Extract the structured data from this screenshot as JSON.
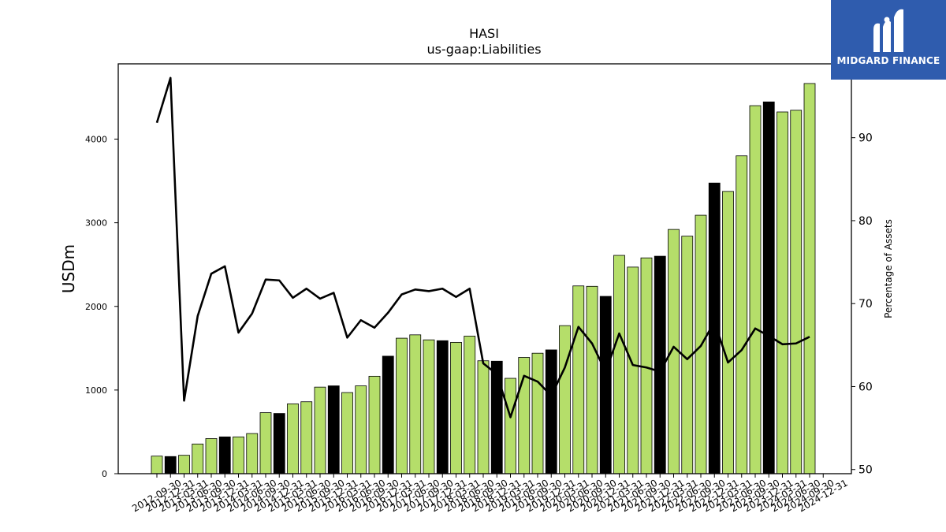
{
  "brand": {
    "name": "MIDGARD FINANCE",
    "bg_color": "#2f5cae"
  },
  "chart_data": {
    "type": "bar",
    "title": "HASI",
    "subtitle": "us-gaap:Liabilities",
    "ylabel": "USDm",
    "y2label": "Percentage of Assets",
    "ylim": [
      0,
      4900
    ],
    "y2lim": [
      49.5,
      98.9
    ],
    "yticks": [
      0,
      1000,
      2000,
      3000,
      4000
    ],
    "y2ticks": [
      50,
      60,
      70,
      80,
      90
    ],
    "colors": {
      "quarter_bar": "#b5de6a",
      "year_end_bar": "#000000",
      "line": "#000000"
    },
    "categories": [
      "2012-09-30",
      "2012-12-31",
      "2013-03-31",
      "2013-06-30",
      "2013-09-30",
      "2013-12-31",
      "2014-03-31",
      "2014-06-30",
      "2014-09-30",
      "2014-12-31",
      "2015-03-31",
      "2015-06-30",
      "2015-09-30",
      "2015-12-31",
      "2016-03-31",
      "2016-06-30",
      "2016-09-30",
      "2016-12-31",
      "2017-03-31",
      "2017-06-30",
      "2017-09-30",
      "2017-12-31",
      "2018-03-31",
      "2018-06-30",
      "2018-09-30",
      "2018-12-31",
      "2019-03-31",
      "2019-06-30",
      "2019-09-30",
      "2019-12-31",
      "2020-03-31",
      "2020-06-30",
      "2020-09-30",
      "2020-12-31",
      "2021-03-31",
      "2021-06-30",
      "2021-09-30",
      "2021-12-31",
      "2022-03-31",
      "2022-06-30",
      "2022-09-30",
      "2022-12-31",
      "2023-03-31",
      "2023-06-30",
      "2023-09-30",
      "2023-12-31",
      "2024-03-31",
      "2024-06-30",
      "2024-09-30",
      "2024-12-31"
    ],
    "year_end": [
      false,
      true,
      false,
      false,
      false,
      true,
      false,
      false,
      false,
      true,
      false,
      false,
      false,
      true,
      false,
      false,
      false,
      true,
      false,
      false,
      false,
      true,
      false,
      false,
      false,
      true,
      false,
      false,
      false,
      true,
      false,
      false,
      false,
      true,
      false,
      false,
      false,
      true,
      false,
      false,
      false,
      true,
      false,
      false,
      false,
      true,
      false,
      false,
      false,
      true
    ],
    "series": [
      {
        "kind": "bar",
        "values": [
          210,
          205,
          220,
          355,
          420,
          440,
          440,
          480,
          730,
          720,
          835,
          860,
          1035,
          1050,
          970,
          1050,
          1165,
          1405,
          1620,
          1660,
          1600,
          1590,
          1570,
          1645,
          1350,
          1345,
          1140,
          1390,
          1440,
          1480,
          1770,
          2245,
          2240,
          2120,
          2610,
          2470,
          2580,
          2600,
          2920,
          2840,
          3090,
          3475,
          3375,
          3800,
          4400,
          4445,
          4325,
          4345,
          4665,
          null
        ]
      },
      {
        "kind": "line",
        "values": [
          91.8,
          97.2,
          58.3,
          68.5,
          73.6,
          74.5,
          66.5,
          68.8,
          72.9,
          72.8,
          70.7,
          71.8,
          70.6,
          71.3,
          65.9,
          68.0,
          67.1,
          68.9,
          71.1,
          71.7,
          71.5,
          71.8,
          70.8,
          71.8,
          62.8,
          61.5,
          56.3,
          61.3,
          60.6,
          58.9,
          62.3,
          67.2,
          65.2,
          61.8,
          66.4,
          62.6,
          62.3,
          61.8,
          64.8,
          63.3,
          64.9,
          67.8,
          62.9,
          64.4,
          67.0,
          66.1,
          65.1,
          65.2,
          66.0,
          null
        ]
      }
    ]
  }
}
